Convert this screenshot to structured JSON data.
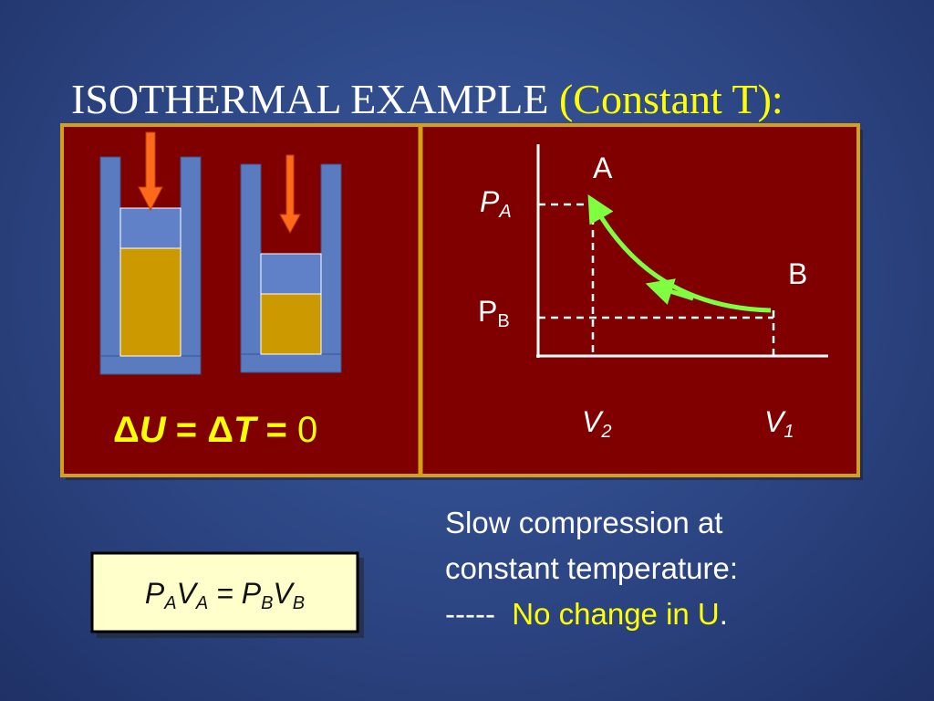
{
  "title": {
    "main": "ISOTHERMAL EXAMPLE",
    "highlight": "(Constant T):"
  },
  "left_panel": {
    "equation": [
      "Δ",
      "U",
      " = ",
      "Δ",
      "T",
      " = ",
      "0"
    ]
  },
  "graph": {
    "point_a": "A",
    "point_b": "B",
    "p_a": {
      "base": "P",
      "sub": "A"
    },
    "p_b": {
      "base": "P",
      "sub": "B"
    },
    "v_2": {
      "base": "V",
      "sub": "2"
    },
    "v_1": {
      "base": "V",
      "sub": "1"
    }
  },
  "formula_box": [
    "P",
    "A",
    "V",
    "A",
    " = ",
    "P",
    "B",
    "V",
    "B"
  ],
  "description": {
    "line1": "Slow compression at",
    "line2": "constant temperature:",
    "dashes": "-----",
    "highlight": "No change in U",
    "end": "."
  }
}
